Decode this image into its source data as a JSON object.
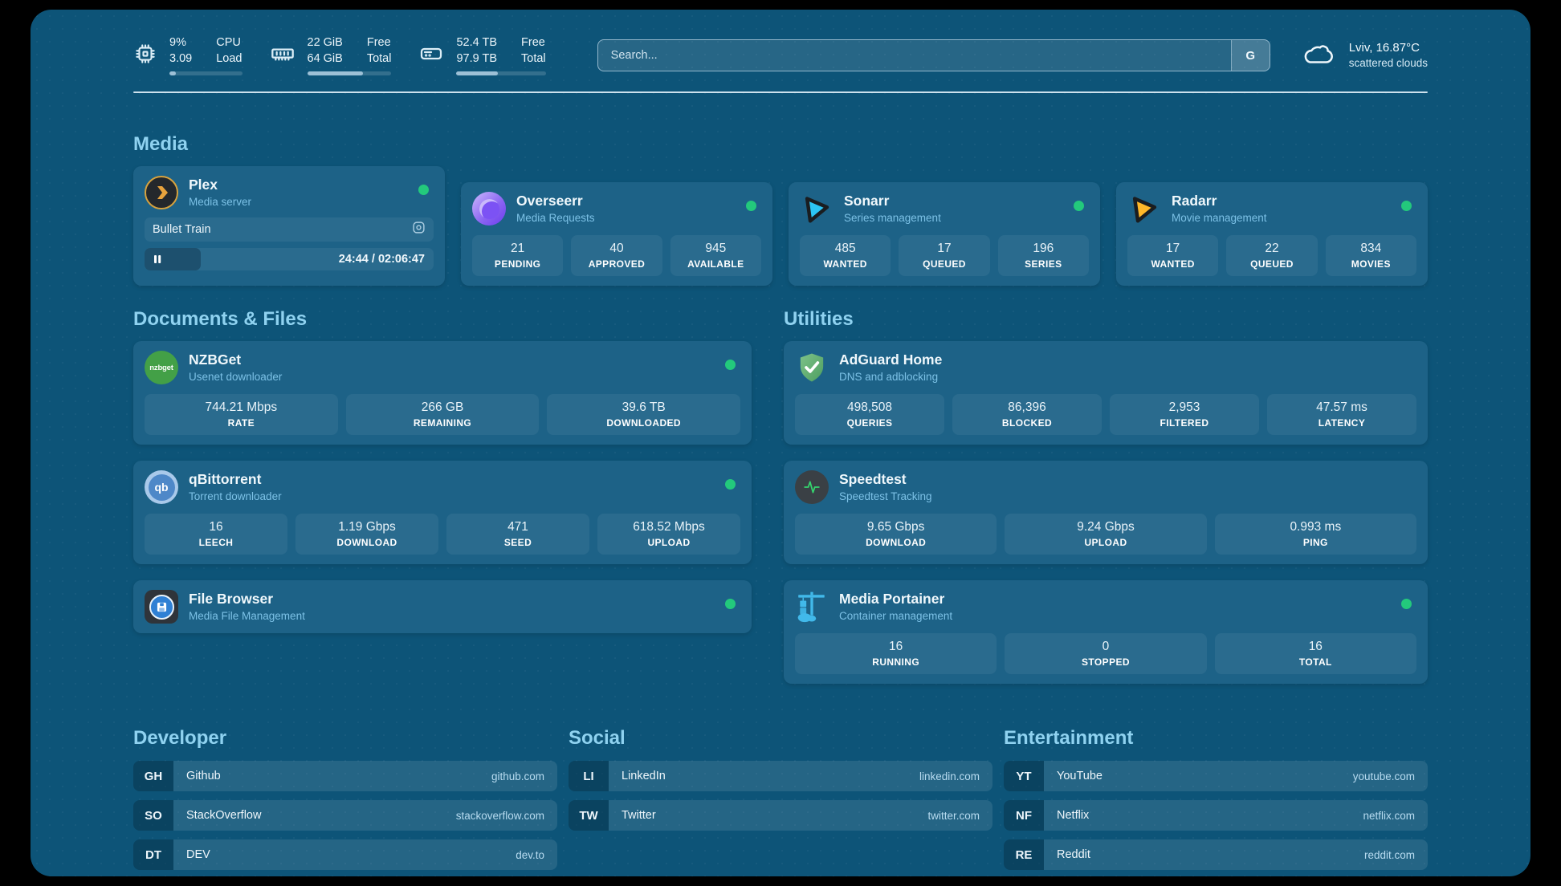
{
  "topbar": {
    "cpu": {
      "values": [
        "9%",
        "3.09"
      ],
      "labels": [
        "CPU",
        "Load"
      ],
      "progress_pct": 9
    },
    "memory": {
      "values": [
        "22 GiB",
        "64 GiB"
      ],
      "labels": [
        "Free",
        "Total"
      ],
      "progress_pct": 66
    },
    "disk": {
      "values": [
        "52.4 TB",
        "97.9 TB"
      ],
      "labels": [
        "Free",
        "Total"
      ],
      "progress_pct": 46
    },
    "search": {
      "placeholder": "Search...",
      "button_label": "G"
    },
    "weather": {
      "location": "Lviv, 16.87°C",
      "condition": "scattered clouds"
    }
  },
  "sections": {
    "media": "Media",
    "documents": "Documents & Files",
    "utilities": "Utilities",
    "developer": "Developer",
    "social": "Social",
    "entertainment": "Entertainment"
  },
  "apps": {
    "plex": {
      "name": "Plex",
      "desc": "Media server",
      "now_playing": "Bullet Train",
      "time": "24:44 / 02:06:47",
      "progress_pct": 19.5
    },
    "overseerr": {
      "name": "Overseerr",
      "desc": "Media Requests",
      "stats": [
        {
          "value": "21",
          "label": "PENDING"
        },
        {
          "value": "40",
          "label": "APPROVED"
        },
        {
          "value": "945",
          "label": "AVAILABLE"
        }
      ]
    },
    "sonarr": {
      "name": "Sonarr",
      "desc": "Series management",
      "stats": [
        {
          "value": "485",
          "label": "WANTED"
        },
        {
          "value": "17",
          "label": "QUEUED"
        },
        {
          "value": "196",
          "label": "SERIES"
        }
      ]
    },
    "radarr": {
      "name": "Radarr",
      "desc": "Movie management",
      "stats": [
        {
          "value": "17",
          "label": "WANTED"
        },
        {
          "value": "22",
          "label": "QUEUED"
        },
        {
          "value": "834",
          "label": "MOVIES"
        }
      ]
    },
    "nzbget": {
      "name": "NZBGet",
      "desc": "Usenet downloader",
      "icon_text": "nzbget",
      "stats": [
        {
          "value": "744.21 Mbps",
          "label": "RATE"
        },
        {
          "value": "266 GB",
          "label": "REMAINING"
        },
        {
          "value": "39.6 TB",
          "label": "DOWNLOADED"
        }
      ]
    },
    "qbittorrent": {
      "name": "qBittorrent",
      "desc": "Torrent downloader",
      "icon_text": "qb",
      "stats": [
        {
          "value": "16",
          "label": "LEECH"
        },
        {
          "value": "1.19 Gbps",
          "label": "DOWNLOAD"
        },
        {
          "value": "471",
          "label": "SEED"
        },
        {
          "value": "618.52 Mbps",
          "label": "UPLOAD"
        }
      ]
    },
    "filebrowser": {
      "name": "File Browser",
      "desc": "Media File Management"
    },
    "adguard": {
      "name": "AdGuard Home",
      "desc": "DNS and adblocking",
      "stats": [
        {
          "value": "498,508",
          "label": "QUERIES"
        },
        {
          "value": "86,396",
          "label": "BLOCKED"
        },
        {
          "value": "2,953",
          "label": "FILTERED"
        },
        {
          "value": "47.57 ms",
          "label": "LATENCY"
        }
      ]
    },
    "speedtest": {
      "name": "Speedtest",
      "desc": "Speedtest Tracking",
      "stats": [
        {
          "value": "9.65 Gbps",
          "label": "DOWNLOAD"
        },
        {
          "value": "9.24 Gbps",
          "label": "UPLOAD"
        },
        {
          "value": "0.993 ms",
          "label": "PING"
        }
      ]
    },
    "portainer": {
      "name": "Media Portainer",
      "desc": "Container management",
      "stats": [
        {
          "value": "16",
          "label": "RUNNING"
        },
        {
          "value": "0",
          "label": "STOPPED"
        },
        {
          "value": "16",
          "label": "TOTAL"
        }
      ]
    }
  },
  "bookmarks": {
    "developer": [
      {
        "abbr": "GH",
        "name": "Github",
        "url": "github.com"
      },
      {
        "abbr": "SO",
        "name": "StackOverflow",
        "url": "stackoverflow.com"
      },
      {
        "abbr": "DT",
        "name": "DEV",
        "url": "dev.to"
      }
    ],
    "social": [
      {
        "abbr": "LI",
        "name": "LinkedIn",
        "url": "linkedin.com"
      },
      {
        "abbr": "TW",
        "name": "Twitter",
        "url": "twitter.com"
      }
    ],
    "entertainment": [
      {
        "abbr": "YT",
        "name": "YouTube",
        "url": "youtube.com"
      },
      {
        "abbr": "NF",
        "name": "Netflix",
        "url": "netflix.com"
      },
      {
        "abbr": "RE",
        "name": "Reddit",
        "url": "reddit.com"
      }
    ]
  },
  "colors": {
    "background": "#0d5478",
    "card": "#1d6287",
    "status_online": "#23c97c",
    "heading": "#8fd2f0",
    "plex_gold": "#e8a33d",
    "sonarr_cyan": "#2cc5f4",
    "radarr_orange": "#ffb829"
  }
}
